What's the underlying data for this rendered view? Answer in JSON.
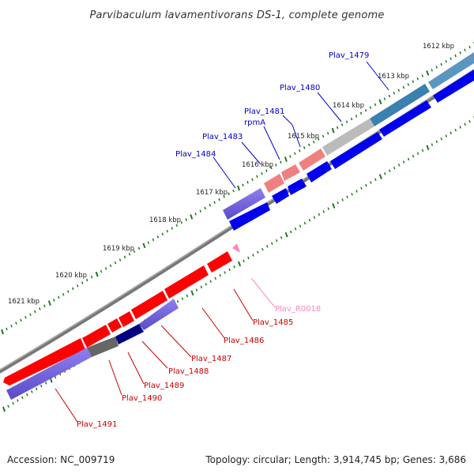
{
  "title": "Parvibaculum lavamentivorans DS-1, complete genome",
  "footer": {
    "accession": "Accession: NC_009719",
    "summary": "Topology: circular; Length: 3,914,745 bp; Genes: 3,686"
  },
  "colors": {
    "forward": "#0000ee",
    "reverse": "#ff0000",
    "forward_label": "#0000cc",
    "reverse_label": "#cc0000",
    "rna": "#ff88bb",
    "rna_label": "#ff88bb",
    "backbone": "#777777",
    "tick": "#1e7a1e",
    "highlight_blue": "#3a80b0",
    "highlight_gray": "#bbbbbb",
    "highlight_salmon": "#f08080",
    "highlight_purple": "#7b68ee",
    "highlight_darkgray": "#666666",
    "highlight_navy": "#000080"
  },
  "kbp_labels": [
    "1612 kbp",
    "1613 kbp",
    "1614 kbp",
    "1615 kbp",
    "1616 kbp",
    "1617 kbp",
    "1618 kbp",
    "1619 kbp",
    "1620 kbp",
    "1621 kbp"
  ],
  "upper_genes": [
    {
      "label": "Plav_1479",
      "strand": "highlight"
    },
    {
      "label": "Plav_1480",
      "strand": "forward"
    },
    {
      "label": "Plav_1481",
      "strand": "forward"
    },
    {
      "label": "rpmA",
      "strand": "forward"
    },
    {
      "label": "Plav_1483",
      "strand": "forward"
    },
    {
      "label": "Plav_1484",
      "strand": "highlight"
    }
  ],
  "lower_genes": [
    {
      "label": "Plav_R0018",
      "strand": "rna"
    },
    {
      "label": "Plav_1485",
      "strand": "reverse"
    },
    {
      "label": "Plav_1486",
      "strand": "reverse"
    },
    {
      "label": "Plav_1487",
      "strand": "reverse"
    },
    {
      "label": "Plav_1488",
      "strand": "reverse"
    },
    {
      "label": "Plav_1489",
      "strand": "reverse"
    },
    {
      "label": "Plav_1490",
      "strand": "reverse"
    },
    {
      "label": "Plav_1491",
      "strand": "reverse"
    }
  ]
}
